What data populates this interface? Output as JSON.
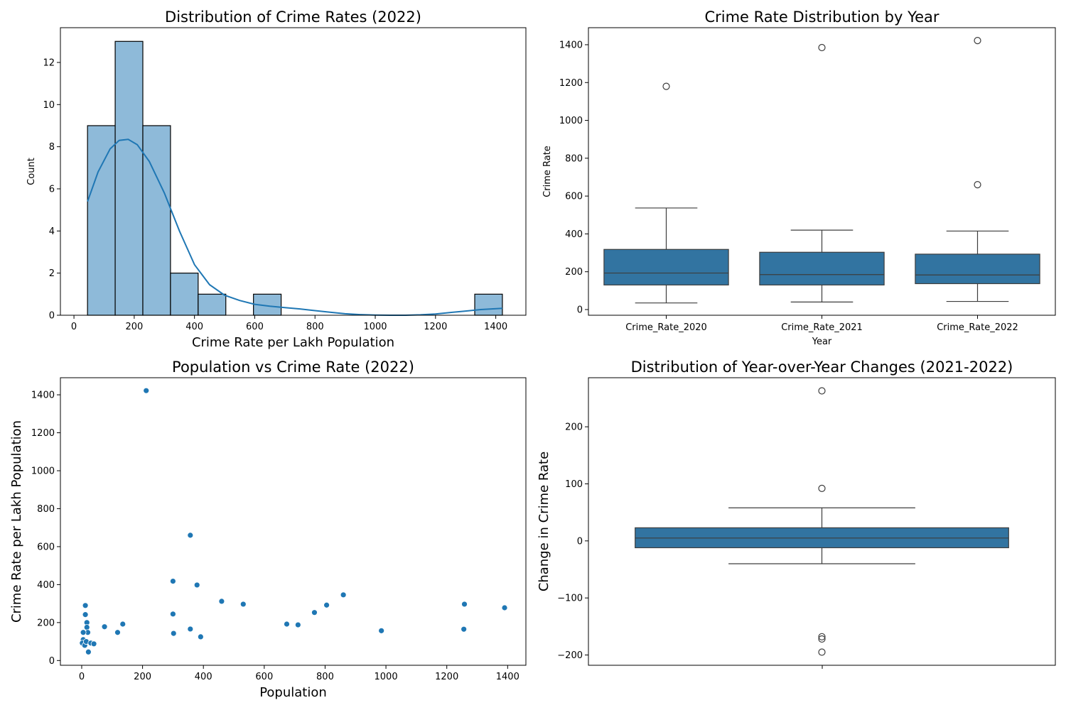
{
  "chart_data": [
    {
      "type": "bar",
      "title": "Distribution of Crime Rates (2022)",
      "xlabel": "Crime Rate per Lakh Population",
      "ylabel": "Count",
      "xlim": [
        -45,
        1500
      ],
      "ylim": [
        0,
        13.65
      ],
      "xticks": [
        0,
        200,
        400,
        600,
        800,
        1000,
        1200,
        1400
      ],
      "yticks": [
        0,
        2,
        4,
        6,
        8,
        10,
        12
      ],
      "bins": [
        {
          "x0": 45,
          "x1": 136.8,
          "count": 9
        },
        {
          "x0": 136.8,
          "x1": 228.6,
          "count": 13
        },
        {
          "x0": 228.6,
          "x1": 320.4,
          "count": 9
        },
        {
          "x0": 320.4,
          "x1": 412.2,
          "count": 2
        },
        {
          "x0": 412.2,
          "x1": 504,
          "count": 1
        },
        {
          "x0": 504,
          "x1": 595.8,
          "count": 0
        },
        {
          "x0": 595.8,
          "x1": 687.6,
          "count": 1
        },
        {
          "x0": 687.6,
          "x1": 779.4,
          "count": 0
        },
        {
          "x0": 779.4,
          "x1": 871.2,
          "count": 0
        },
        {
          "x0": 871.2,
          "x1": 963,
          "count": 0
        },
        {
          "x0": 963,
          "x1": 1054.8,
          "count": 0
        },
        {
          "x0": 1054.8,
          "x1": 1146.6,
          "count": 0
        },
        {
          "x0": 1146.6,
          "x1": 1238.4,
          "count": 0
        },
        {
          "x0": 1238.4,
          "x1": 1330.2,
          "count": 0
        },
        {
          "x0": 1330.2,
          "x1": 1422,
          "count": 1
        }
      ],
      "kde": [
        [
          45,
          5.4
        ],
        [
          80,
          6.8
        ],
        [
          120,
          7.9
        ],
        [
          150,
          8.3
        ],
        [
          180,
          8.35
        ],
        [
          210,
          8.1
        ],
        [
          250,
          7.3
        ],
        [
          300,
          5.8
        ],
        [
          350,
          4.0
        ],
        [
          400,
          2.4
        ],
        [
          450,
          1.45
        ],
        [
          500,
          0.95
        ],
        [
          550,
          0.7
        ],
        [
          600,
          0.52
        ],
        [
          650,
          0.43
        ],
        [
          700,
          0.36
        ],
        [
          750,
          0.3
        ],
        [
          800,
          0.22
        ],
        [
          850,
          0.14
        ],
        [
          900,
          0.07
        ],
        [
          950,
          0.03
        ],
        [
          1000,
          0.01
        ],
        [
          1050,
          0.0
        ],
        [
          1100,
          0.0
        ],
        [
          1150,
          0.02
        ],
        [
          1200,
          0.06
        ],
        [
          1250,
          0.13
        ],
        [
          1300,
          0.2
        ],
        [
          1350,
          0.27
        ],
        [
          1422,
          0.33
        ]
      ],
      "color": "#1f77b4",
      "bar_fill": "#8ebad9"
    },
    {
      "type": "box",
      "title": "Crime Rate Distribution by Year",
      "xlabel": "Year",
      "ylabel": "Crime Rate",
      "ylim": [
        -30,
        1490
      ],
      "yticks": [
        0,
        200,
        400,
        600,
        800,
        1000,
        1200,
        1400
      ],
      "categories": [
        "Crime_Rate_2020",
        "Crime_Rate_2021",
        "Crime_Rate_2022"
      ],
      "boxes": [
        {
          "whisker_low": 35,
          "q1": 130,
          "median": 193,
          "q3": 318,
          "whisker_high": 537,
          "outliers": [
            1180
          ]
        },
        {
          "whisker_low": 40,
          "q1": 130,
          "median": 185,
          "q3": 303,
          "whisker_high": 420,
          "outliers": [
            1385
          ]
        },
        {
          "whisker_low": 43,
          "q1": 137,
          "median": 183,
          "q3": 293,
          "whisker_high": 415,
          "outliers": [
            1422,
            660
          ]
        }
      ],
      "color": "#3274a1"
    },
    {
      "type": "scatter",
      "title": "Population vs Crime Rate (2022)",
      "xlabel": "Population",
      "ylabel": "Crime Rate per Lakh Population",
      "xlim": [
        -70,
        1460
      ],
      "ylim": [
        -25,
        1490
      ],
      "xticks": [
        0,
        200,
        400,
        600,
        800,
        1000,
        1200,
        1400
      ],
      "yticks": [
        0,
        200,
        400,
        600,
        800,
        1000,
        1200,
        1400
      ],
      "points": [
        [
          212,
          1422
        ],
        [
          357,
          660
        ],
        [
          300,
          418
        ],
        [
          379,
          398
        ],
        [
          460,
          312
        ],
        [
          531,
          297
        ],
        [
          860,
          346
        ],
        [
          805,
          292
        ],
        [
          1258,
          297
        ],
        [
          1390,
          278
        ],
        [
          765,
          253
        ],
        [
          300,
          245
        ],
        [
          674,
          192
        ],
        [
          711,
          188
        ],
        [
          985,
          157
        ],
        [
          1256,
          165
        ],
        [
          357,
          166
        ],
        [
          302,
          143
        ],
        [
          391,
          125
        ],
        [
          135,
          192
        ],
        [
          75,
          178
        ],
        [
          118,
          148
        ],
        [
          12,
          290
        ],
        [
          12,
          242
        ],
        [
          17,
          200
        ],
        [
          17,
          175
        ],
        [
          20,
          148
        ],
        [
          5,
          148
        ],
        [
          5,
          110
        ],
        [
          2,
          92
        ],
        [
          10,
          80
        ],
        [
          15,
          100
        ],
        [
          30,
          92
        ],
        [
          40,
          88
        ],
        [
          22,
          45
        ]
      ],
      "color": "#1f77b4"
    },
    {
      "type": "box",
      "title": "Distribution of Year-over-Year Changes (2021-2022)",
      "ylabel": "Change in Crime Rate",
      "ylim": [
        -218,
        286
      ],
      "yticks": [
        -200,
        -100,
        0,
        100,
        200
      ],
      "boxes": [
        {
          "whisker_low": -40,
          "q1": -12,
          "median": 5,
          "q3": 23,
          "whisker_high": 58,
          "outliers": [
            263,
            92,
            -168,
            -172,
            -195
          ]
        }
      ],
      "color": "#3274a1"
    }
  ]
}
